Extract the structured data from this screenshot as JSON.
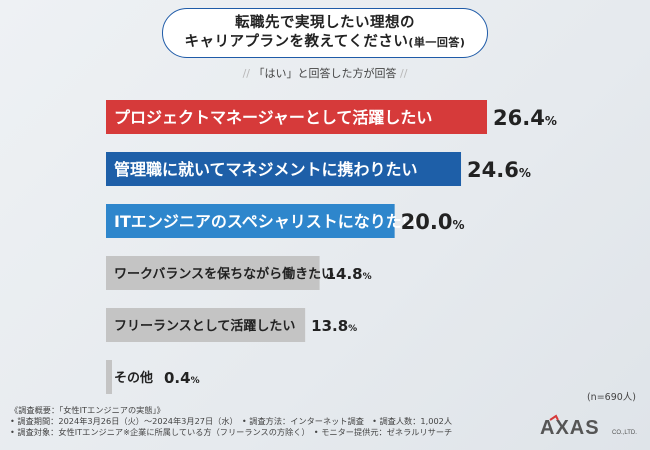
{
  "title": {
    "line1": "転職先で実現したい理想の",
    "line2": "キャリアプランを教えてください",
    "line2_suffix": "(単一回答)"
  },
  "subtitle": {
    "left_slash": "//",
    "text": "「はい」と回答した方が回答",
    "right_slash": "//"
  },
  "chart_data": {
    "type": "bar",
    "orientation": "horizontal",
    "categories": [
      "プロジェクトマネージャーとして活躍したい",
      "管理職に就いてマネジメントに携わりたい",
      "ITエンジニアのスペシャリストになりたい",
      "ワークバランスを保ちながら働きたい",
      "フリーランスとして活躍したい",
      "その他"
    ],
    "values": [
      26.4,
      24.6,
      20.0,
      14.8,
      13.8,
      0.4
    ],
    "value_labels": [
      {
        "int": "26.",
        "dec": "4",
        "unit": "%"
      },
      {
        "int": "24.",
        "dec": "6",
        "unit": "%"
      },
      {
        "int": "20.",
        "dec": "0",
        "unit": "%"
      },
      {
        "int": "14.",
        "dec": "8",
        "unit": "%"
      },
      {
        "int": "13.",
        "dec": "8",
        "unit": "%"
      },
      {
        "int": "0.",
        "dec": "4",
        "unit": "%"
      }
    ],
    "colors": [
      "#d63a3a",
      "#1e5fa8",
      "#2e86cc",
      "#c4c4c4",
      "#c4c4c4",
      "#c4c4c4"
    ],
    "xlim": [
      0,
      30
    ],
    "unit": "%"
  },
  "note": "(n=690人)",
  "footer": {
    "line1": "《調査概要：「女性ITエンジニアの実態」》",
    "line2": "• 調査期間：2024年3月26日（火）〜2024年3月27日（水）　• 調査方法：インターネット調査　• 調査人数：1,002人",
    "line3": "• 調査対象：女性ITエンジニア※企業に所属している方（フリーランスの方除く）　• モニター提供元：ゼネラルリサーチ"
  },
  "logo": {
    "text": "AXAS",
    "suffix": "CO.,LTD."
  }
}
